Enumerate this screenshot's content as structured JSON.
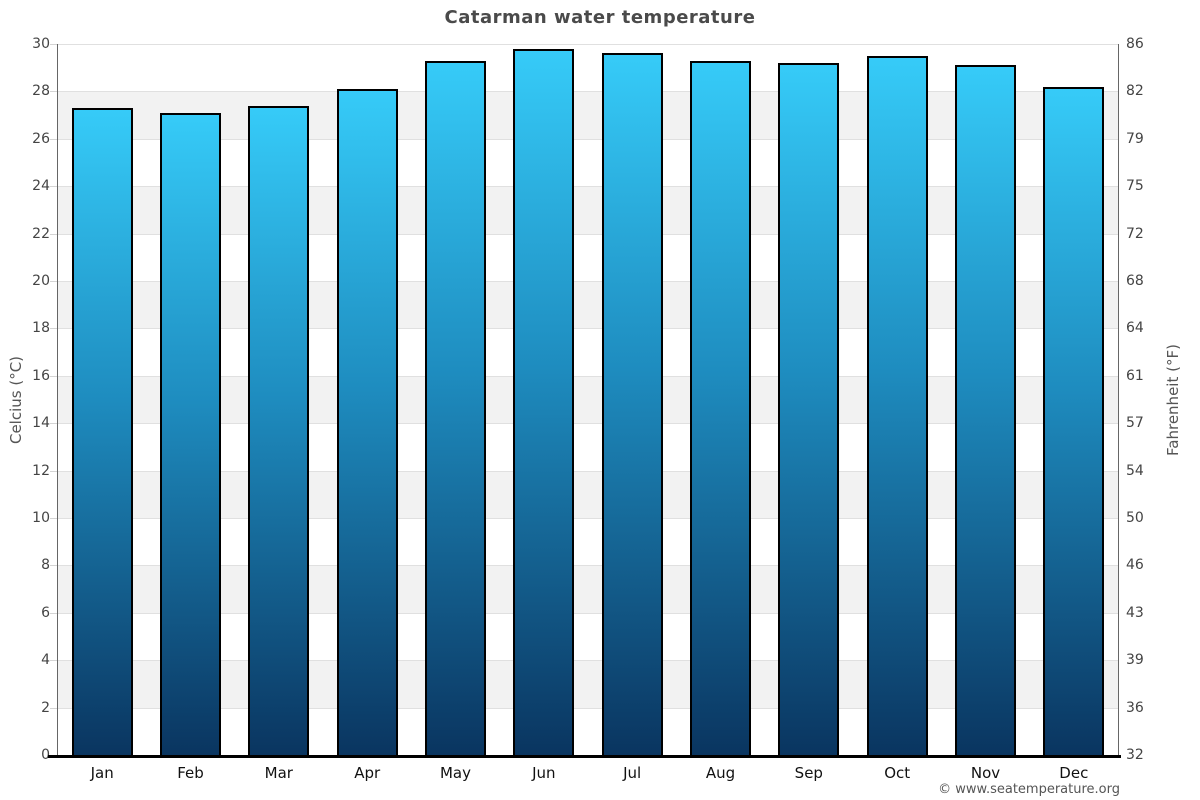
{
  "page": {
    "background": "#ffffff"
  },
  "chart_data": {
    "type": "bar",
    "title": "Catarman water temperature",
    "categories": [
      "Jan",
      "Feb",
      "Mar",
      "Apr",
      "May",
      "Jun",
      "Jul",
      "Aug",
      "Sep",
      "Oct",
      "Nov",
      "Dec"
    ],
    "values_celsius": [
      27.3,
      27.1,
      27.4,
      28.1,
      29.3,
      29.8,
      29.6,
      29.3,
      29.2,
      29.5,
      29.1,
      28.2
    ],
    "ylabel_left": "Celcius (°C)",
    "ylabel_right": "Fahrenheit (°F)",
    "ylim_celsius": [
      0,
      30
    ],
    "yticks_celsius": [
      0,
      2,
      4,
      6,
      8,
      10,
      12,
      14,
      16,
      18,
      20,
      22,
      24,
      26,
      28,
      30
    ],
    "yticks_fahrenheit": [
      32,
      36,
      39,
      43,
      46,
      50,
      54,
      57,
      61,
      64,
      68,
      72,
      75,
      79,
      82,
      86
    ],
    "grid": "horizontal",
    "legend": "none",
    "background_bands": "alternating white and gray every 2°C, white at top band 30-28",
    "colors": {
      "bar_gradient_top": "#36CBF8",
      "bar_gradient_mid": "#1E8CBF",
      "bar_gradient_bottom": "#0A3560",
      "bar_border": "#000000",
      "band_fill": "#f2f2f2",
      "gridline": "#e0e0e0",
      "tick_mark": "#d4d4d4",
      "axis_line": "#666666",
      "bottom_axis_line": "#000000",
      "title_text": "#4a4a4a",
      "tick_text": "#444444",
      "month_text": "#111111",
      "axis_title_text": "#555555",
      "footer_text": "#555555"
    }
  },
  "footer": {
    "credit": "© www.seatemperature.org"
  }
}
